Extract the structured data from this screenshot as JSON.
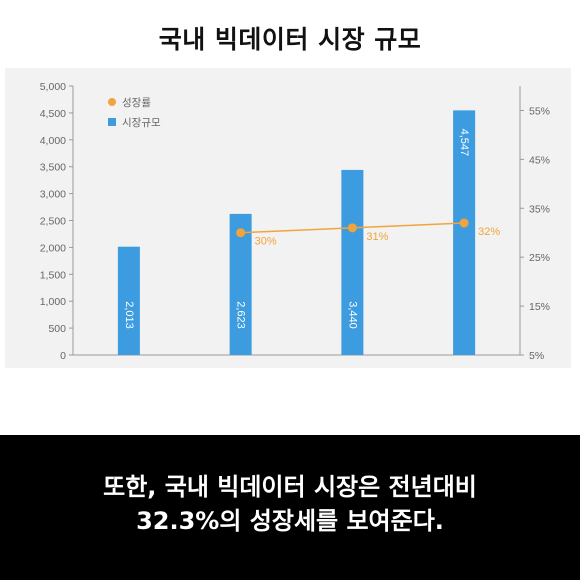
{
  "page": {
    "title": "국내 빅데이터 시장 규모",
    "caption_lines": [
      "또한, 국내 빅데이터 시장은 전년대비",
      "32.3%의 성장세를 보여준다."
    ]
  },
  "chart_data": {
    "type": "bar",
    "title": "",
    "xlabel": "",
    "ylabel": "",
    "ylim": [
      0,
      5000
    ],
    "y_ticks": [
      0,
      500,
      1000,
      1500,
      2000,
      2500,
      3000,
      3500,
      4000,
      4500,
      5000
    ],
    "y_tick_labels": [
      "0",
      "500",
      "1,000",
      "1,500",
      "2,000",
      "2,500",
      "3,000",
      "3,500",
      "4,000",
      "4,500",
      "5,000"
    ],
    "y2lim": [
      5,
      60
    ],
    "y2_ticks": [
      5,
      15,
      25,
      35,
      45,
      55
    ],
    "y2_tick_labels": [
      "5%",
      "15%",
      "25%",
      "35%",
      "45%",
      "55%"
    ],
    "categories": [
      "",
      "",
      "",
      ""
    ],
    "series": [
      {
        "name": "시장규모",
        "type": "bar",
        "axis": "left",
        "color": "#3d9be0",
        "values": [
          2013,
          2623,
          3440,
          4547
        ],
        "labels": [
          "2,013",
          "2,623",
          "3,440",
          "4,547"
        ]
      },
      {
        "name": "성장률",
        "type": "line",
        "axis": "right",
        "color": "#f2a43a",
        "values": [
          null,
          30,
          31,
          32
        ],
        "labels": [
          "",
          "30%",
          "31%",
          "32%"
        ]
      }
    ],
    "legend": {
      "placement": "top-left",
      "items": [
        {
          "name": "성장률",
          "marker": "circle",
          "color": "#f2a43a"
        },
        {
          "name": "시장규모",
          "marker": "square",
          "color": "#3d9be0"
        }
      ]
    },
    "grid": false
  }
}
